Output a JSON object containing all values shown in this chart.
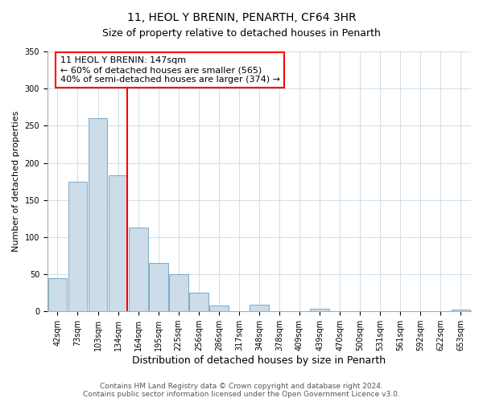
{
  "title": "11, HEOL Y BRENIN, PENARTH, CF64 3HR",
  "subtitle": "Size of property relative to detached houses in Penarth",
  "xlabel": "Distribution of detached houses by size in Penarth",
  "ylabel": "Number of detached properties",
  "bin_labels": [
    "42sqm",
    "73sqm",
    "103sqm",
    "134sqm",
    "164sqm",
    "195sqm",
    "225sqm",
    "256sqm",
    "286sqm",
    "317sqm",
    "348sqm",
    "378sqm",
    "409sqm",
    "439sqm",
    "470sqm",
    "500sqm",
    "531sqm",
    "561sqm",
    "592sqm",
    "622sqm",
    "653sqm"
  ],
  "bar_values": [
    45,
    175,
    260,
    183,
    113,
    65,
    50,
    25,
    8,
    0,
    9,
    0,
    0,
    4,
    0,
    0,
    0,
    0,
    0,
    0,
    2
  ],
  "bar_color": "#ccdce8",
  "bar_edge_color": "#7aaac8",
  "vline_color": "red",
  "annotation_line1": "11 HEOL Y BRENIN: 147sqm",
  "annotation_line2": "← 60% of detached houses are smaller (565)",
  "annotation_line3": "40% of semi-detached houses are larger (374) →",
  "box_facecolor": "white",
  "box_edgecolor": "red",
  "ylim": [
    0,
    350
  ],
  "yticks": [
    0,
    50,
    100,
    150,
    200,
    250,
    300,
    350
  ],
  "footer_line1": "Contains HM Land Registry data © Crown copyright and database right 2024.",
  "footer_line2": "Contains public sector information licensed under the Open Government Licence v3.0.",
  "title_fontsize": 10,
  "subtitle_fontsize": 9,
  "xlabel_fontsize": 9,
  "ylabel_fontsize": 8,
  "tick_fontsize": 7,
  "annotation_fontsize": 8,
  "footer_fontsize": 6.5,
  "grid_color": "#d0dde8"
}
